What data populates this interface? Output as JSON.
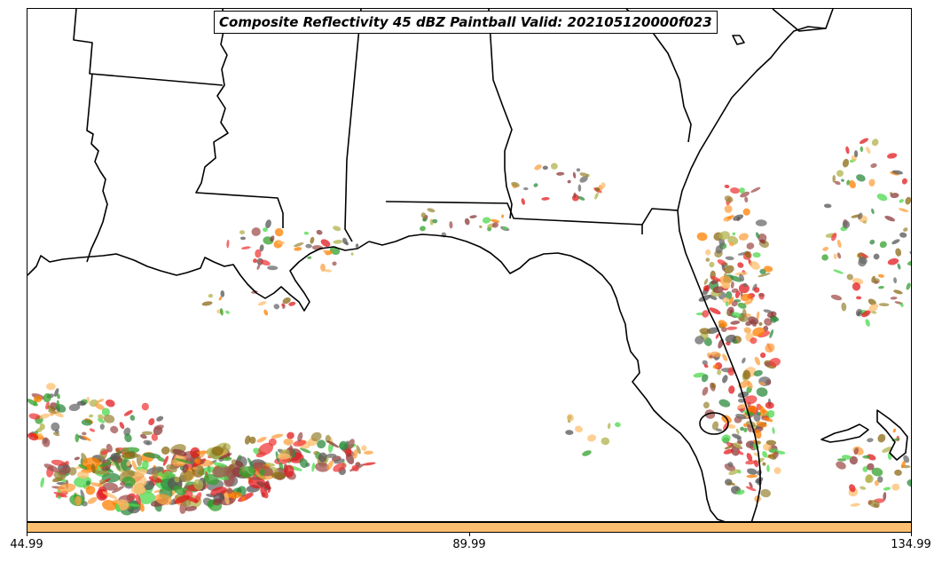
{
  "title": "Composite Reflectivity 45 dBZ Paintball Valid: 202105120000f023",
  "colorbar": {
    "color": "#fdbf6f",
    "tick_labels": [
      "44.99",
      "89.99",
      "134.99"
    ]
  },
  "colors": {
    "outline": "#000000",
    "paintball_palette": [
      "#e31a1c",
      "#f03b3b",
      "#ff7f00",
      "#fdbf6f",
      "#fca040",
      "#33a02c",
      "#4cd84c",
      "#2e8b3d",
      "#8b6914",
      "#9c8a3c",
      "#b2b24c",
      "#8b3a3a",
      "#a0524d",
      "#555555",
      "#6a6a6a"
    ]
  }
}
